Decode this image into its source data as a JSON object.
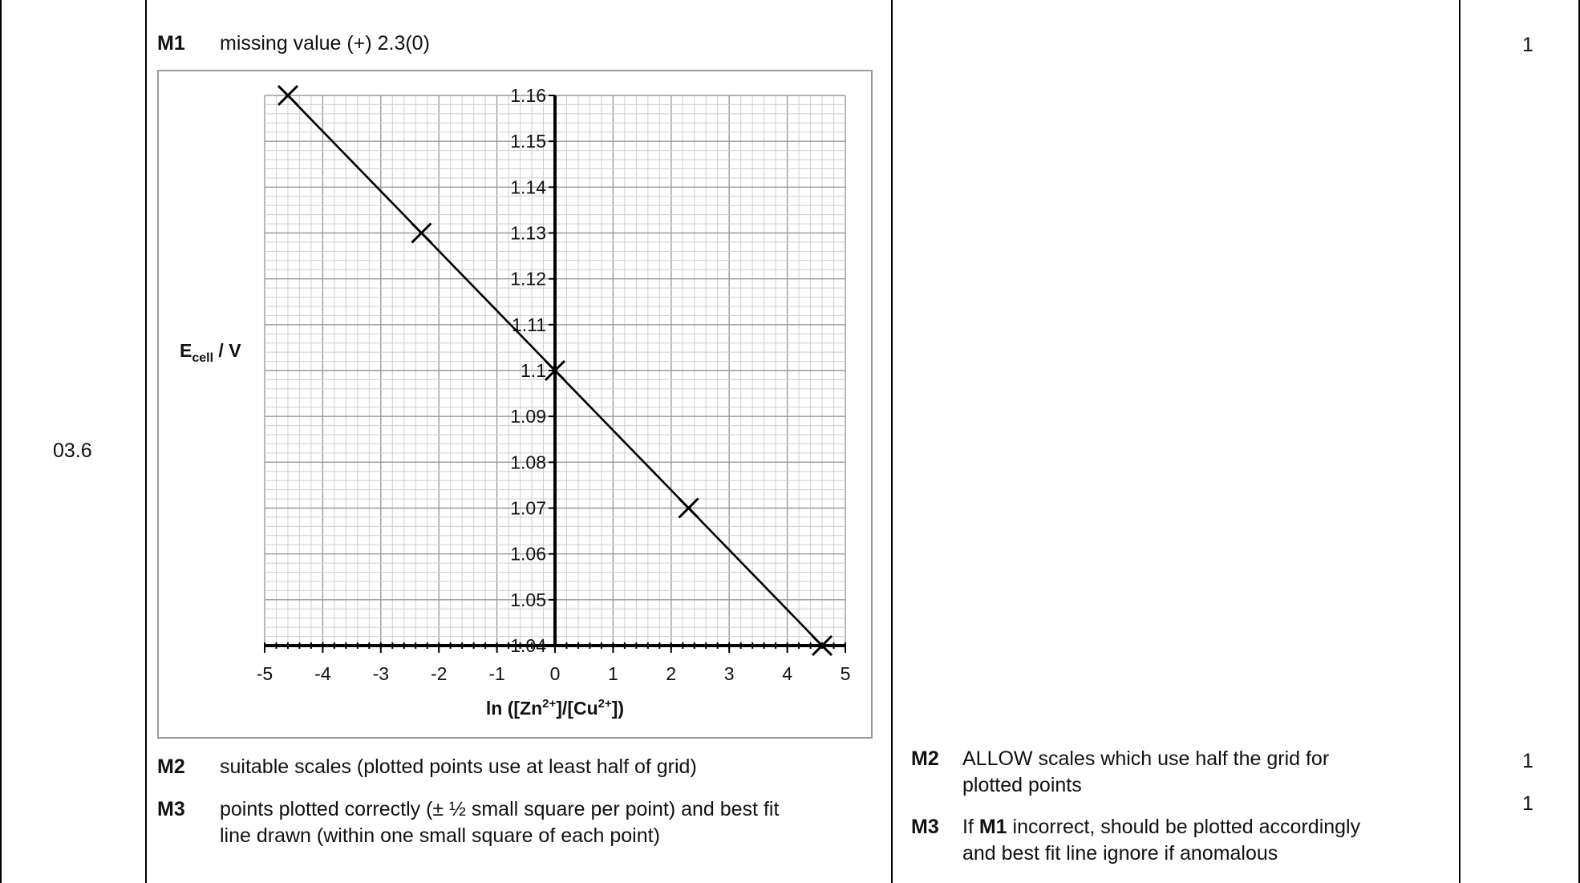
{
  "question": {
    "number": "03.6"
  },
  "answer": {
    "m1": {
      "label": "M1",
      "text": "missing value (+) 2.3(0)"
    },
    "m2": {
      "label": "M2",
      "text": "suitable scales (plotted points use at least half of grid)"
    },
    "m3": {
      "label": "M3",
      "line1": "points plotted correctly (± ½ small square per point) and best fit",
      "line2": "line drawn (within one small square of each point)"
    }
  },
  "guidance": {
    "m2": {
      "label": "M2",
      "line1": "ALLOW scales which use half the grid for",
      "line2": "plotted points"
    },
    "m3": {
      "label": "M3",
      "pre": "If ",
      "bold": "M1",
      "post": " incorrect, should be plotted accordingly",
      "line2": "and best fit line ignore if anomalous"
    }
  },
  "marks": [
    "1",
    "1",
    "1"
  ],
  "chart_data": {
    "type": "scatter",
    "title": "",
    "xlabel": {
      "main": "ln ([Zn",
      "sup1": "2+",
      "mid": "]/[Cu",
      "sup2": "2+",
      "end": "])"
    },
    "ylabel": {
      "main": "E",
      "sub": "cell",
      "end": " / V"
    },
    "xlim": [
      -5,
      5
    ],
    "ylim": [
      1.04,
      1.16
    ],
    "x_ticks": [
      "-5",
      "-4",
      "-3",
      "-2",
      "-1",
      "0",
      "1",
      "2",
      "3",
      "4",
      "5"
    ],
    "y_ticks": [
      "1.04",
      "1.05",
      "1.06",
      "1.07",
      "1.08",
      "1.09",
      "1.1",
      "1.11",
      "1.12",
      "1.13",
      "1.14",
      "1.15",
      "1.16"
    ],
    "grid": true,
    "points": [
      {
        "x": -4.6,
        "y": 1.16
      },
      {
        "x": -2.3,
        "y": 1.13
      },
      {
        "x": 0,
        "y": 1.1
      },
      {
        "x": 2.3,
        "y": 1.07
      },
      {
        "x": 4.6,
        "y": 1.04
      }
    ],
    "best_fit_line": {
      "x": [
        -4.6,
        4.6
      ],
      "y": [
        1.16,
        1.04
      ]
    }
  }
}
